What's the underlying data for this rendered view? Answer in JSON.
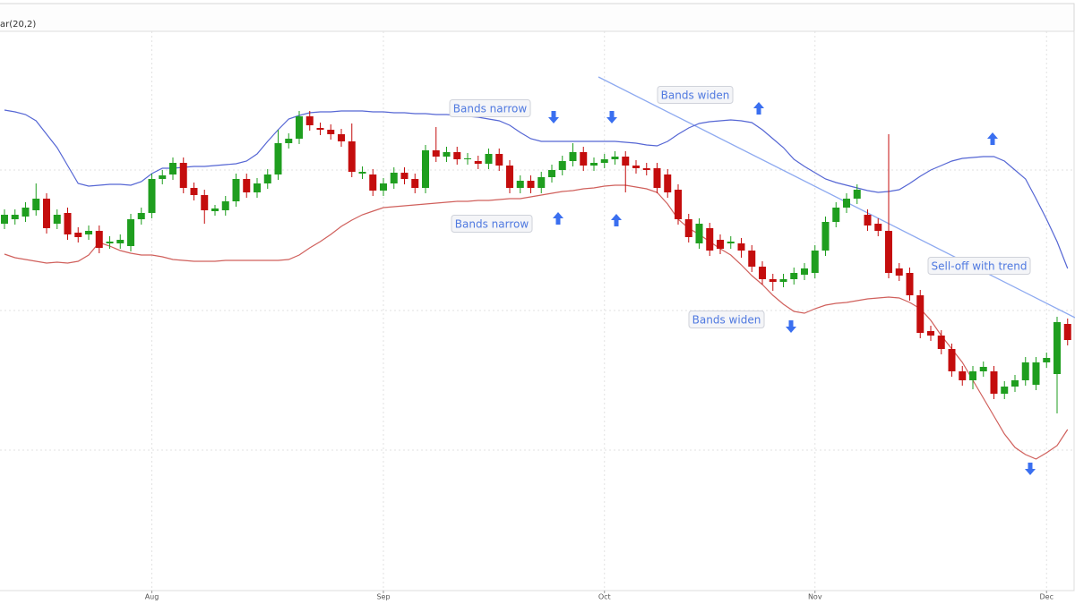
{
  "chart_data": {
    "type": "candlestick",
    "header_label": "ar(20,2)",
    "categories": [
      null,
      null,
      null,
      null,
      null,
      null,
      null,
      null,
      null,
      null,
      null,
      null,
      null,
      null,
      "Aug",
      null,
      null,
      null,
      null,
      null,
      null,
      null,
      null,
      null,
      null,
      null,
      null,
      null,
      null,
      null,
      null,
      null,
      null,
      null,
      null,
      null,
      "Sep",
      null,
      null,
      null,
      null,
      null,
      null,
      null,
      null,
      null,
      null,
      null,
      null,
      null,
      null,
      null,
      null,
      null,
      null,
      null,
      null,
      "Oct",
      null,
      null,
      null,
      null,
      null,
      null,
      null,
      null,
      null,
      null,
      null,
      null,
      null,
      null,
      null,
      null,
      null,
      null,
      null,
      "Nov",
      null,
      null,
      null,
      null,
      null,
      null,
      null,
      null,
      null,
      null,
      null,
      null,
      null,
      null,
      null,
      null,
      null,
      null,
      null,
      null,
      null,
      "Dec",
      null,
      null
    ],
    "open": [
      410,
      415,
      418,
      425,
      438,
      410,
      422,
      400,
      398,
      402,
      388,
      388,
      385,
      415,
      422,
      460,
      465,
      478,
      450,
      442,
      424,
      425,
      435,
      460,
      445,
      455,
      465,
      500,
      505,
      530,
      517,
      515,
      510,
      502,
      466,
      465,
      447,
      455,
      467,
      460,
      450,
      492,
      485,
      490,
      482,
      480,
      477,
      488,
      475,
      450,
      458,
      450,
      462,
      470,
      480,
      490,
      475,
      478,
      482,
      485,
      475,
      472,
      472,
      465,
      448,
      415,
      388,
      405,
      392,
      388,
      388,
      380,
      362,
      348,
      345,
      348,
      353,
      355,
      380,
      412,
      428,
      438,
      420,
      410,
      402,
      360,
      355,
      330,
      290,
      285,
      270,
      245,
      235,
      245,
      245,
      220,
      228,
      235,
      230,
      255,
      242,
      298
    ],
    "high": [
      426,
      426,
      434,
      455,
      444,
      426,
      428,
      406,
      408,
      408,
      396,
      398,
      421,
      428,
      466,
      470,
      484,
      484,
      456,
      448,
      431,
      441,
      466,
      466,
      461,
      471,
      515,
      511,
      536,
      536,
      523,
      521,
      516,
      522,
      474,
      471,
      461,
      473,
      473,
      466,
      498,
      518,
      496,
      496,
      489,
      486,
      494,
      494,
      481,
      464,
      464,
      468,
      476,
      486,
      500,
      496,
      484,
      488,
      491,
      491,
      481,
      478,
      478,
      471,
      454,
      421,
      416,
      411,
      398,
      396,
      394,
      386,
      368,
      354,
      354,
      361,
      366,
      386,
      418,
      434,
      444,
      454,
      426,
      416,
      510,
      366,
      361,
      336,
      296,
      291,
      276,
      251,
      251,
      256,
      251,
      234,
      241,
      261,
      261,
      266,
      306,
      304
    ],
    "low": [
      404,
      409,
      412,
      419,
      399,
      404,
      392,
      389,
      392,
      377,
      382,
      382,
      379,
      409,
      416,
      454,
      459,
      444,
      436,
      410,
      419,
      419,
      429,
      439,
      439,
      449,
      459,
      494,
      499,
      514,
      509,
      504,
      496,
      462,
      460,
      441,
      441,
      449,
      454,
      444,
      444,
      479,
      479,
      476,
      476,
      471,
      471,
      469,
      444,
      444,
      444,
      444,
      456,
      464,
      474,
      469,
      469,
      472,
      476,
      445,
      466,
      464,
      444,
      439,
      409,
      389,
      382,
      374,
      376,
      382,
      372,
      356,
      342,
      335,
      339,
      342,
      347,
      349,
      374,
      406,
      422,
      432,
      402,
      396,
      349,
      346,
      324,
      282,
      279,
      264,
      239,
      229,
      225,
      239,
      214,
      214,
      222,
      229,
      224,
      249,
      198,
      274
    ],
    "close": [
      420,
      420,
      428,
      438,
      405,
      420,
      398,
      395,
      402,
      383,
      390,
      392,
      415,
      422,
      460,
      464,
      478,
      450,
      442,
      425,
      427,
      435,
      460,
      445,
      455,
      465,
      500,
      505,
      530,
      520,
      515,
      510,
      502,
      468,
      468,
      447,
      455,
      467,
      460,
      450,
      492,
      485,
      490,
      482,
      483,
      477,
      488,
      475,
      450,
      458,
      450,
      462,
      470,
      480,
      490,
      475,
      478,
      482,
      485,
      475,
      472,
      470,
      450,
      445,
      415,
      395,
      410,
      380,
      382,
      390,
      380,
      362,
      348,
      345,
      348,
      355,
      360,
      380,
      412,
      428,
      438,
      448,
      408,
      402,
      355,
      352,
      330,
      288,
      285,
      270,
      245,
      235,
      245,
      250,
      220,
      228,
      235,
      255,
      255,
      260,
      300,
      280
    ],
    "up_color": "#1f9e1f",
    "down_color": "#c40d0d",
    "bands": {
      "upper": {
        "color": "#5566d4",
        "values": [
          537,
          535,
          532,
          525,
          510,
          495,
          475,
          455,
          452,
          453,
          454,
          454,
          453,
          457,
          466,
          472,
          472,
          473,
          474,
          474,
          475,
          476,
          477,
          480,
          488,
          502,
          515,
          527,
          531,
          534,
          535,
          535,
          536,
          536,
          536,
          535,
          535,
          534,
          534,
          533,
          533,
          532,
          532,
          531,
          530,
          529,
          527,
          525,
          520,
          512,
          505,
          502,
          502,
          502,
          502,
          502,
          502,
          502,
          502,
          501,
          500,
          498,
          497,
          502,
          510,
          517,
          522,
          524,
          525,
          526,
          525,
          523,
          515,
          505,
          495,
          482,
          474,
          467,
          460,
          456,
          453,
          450,
          447,
          445,
          446,
          448,
          455,
          463,
          470,
          475,
          480,
          483,
          484,
          485,
          485,
          480,
          470,
          460,
          438,
          415,
          390,
          360
        ]
      },
      "lower": {
        "color": "#d0605c",
        "values": [
          376,
          372,
          370,
          368,
          366,
          367,
          366,
          368,
          375,
          389,
          385,
          380,
          377,
          375,
          375,
          373,
          370,
          369,
          368,
          368,
          368,
          369,
          369,
          369,
          369,
          369,
          369,
          370,
          375,
          383,
          390,
          398,
          407,
          414,
          420,
          424,
          428,
          429,
          430,
          431,
          432,
          433,
          434,
          435,
          435,
          436,
          436,
          437,
          438,
          438,
          440,
          442,
          444,
          446,
          447,
          449,
          450,
          452,
          453,
          453,
          451,
          449,
          445,
          432,
          415,
          405,
          398,
          390,
          382,
          375,
          364,
          352,
          342,
          330,
          320,
          312,
          310,
          315,
          319,
          321,
          322,
          324,
          326,
          327,
          328,
          327,
          322,
          315,
          302,
          285,
          270,
          255,
          235,
          215,
          195,
          175,
          160,
          152,
          147,
          154,
          162,
          180
        ]
      }
    },
    "ylim": [
      0,
      625
    ],
    "y_gridlines": [
      157,
      313,
      470
    ],
    "grid": true,
    "annotations": [
      {
        "text": "Bands narrow"
      },
      {
        "text": "Bands widen"
      },
      {
        "text": "Bands narrow"
      },
      {
        "text": "Sell-off with trend"
      },
      {
        "text": "Bands widen"
      }
    ]
  }
}
